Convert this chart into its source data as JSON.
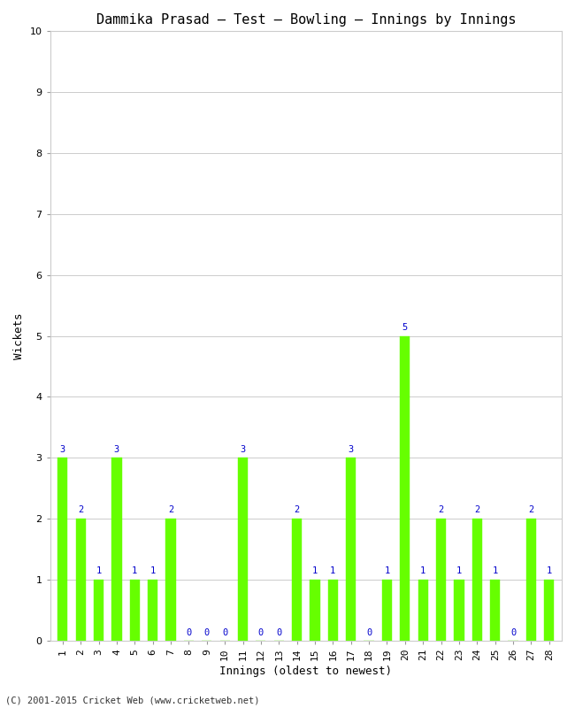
{
  "title": "Dammika Prasad – Test – Bowling – Innings by Innings",
  "xlabel": "Innings (oldest to newest)",
  "ylabel": "Wickets",
  "innings": [
    1,
    2,
    3,
    4,
    5,
    6,
    7,
    8,
    9,
    10,
    11,
    12,
    13,
    14,
    15,
    16,
    17,
    18,
    19,
    20,
    21,
    22,
    23,
    24,
    25,
    26,
    27,
    28
  ],
  "wickets": [
    3,
    2,
    1,
    3,
    1,
    1,
    2,
    0,
    0,
    0,
    3,
    0,
    0,
    2,
    1,
    1,
    3,
    0,
    1,
    5,
    1,
    2,
    1,
    2,
    1,
    0,
    2,
    1
  ],
  "bar_color": "#66FF00",
  "bar_edge_color": "#66FF00",
  "label_color": "#0000CC",
  "background_color": "#FFFFFF",
  "ylim": [
    0,
    10
  ],
  "yticks": [
    0,
    1,
    2,
    3,
    4,
    5,
    6,
    7,
    8,
    9,
    10
  ],
  "grid_color": "#CCCCCC",
  "title_fontsize": 11,
  "axis_label_fontsize": 9,
  "tick_label_fontsize": 8,
  "bar_label_fontsize": 7.5,
  "footer_text": "(C) 2001-2015 Cricket Web (www.cricketweb.net)",
  "bar_width": 0.55
}
